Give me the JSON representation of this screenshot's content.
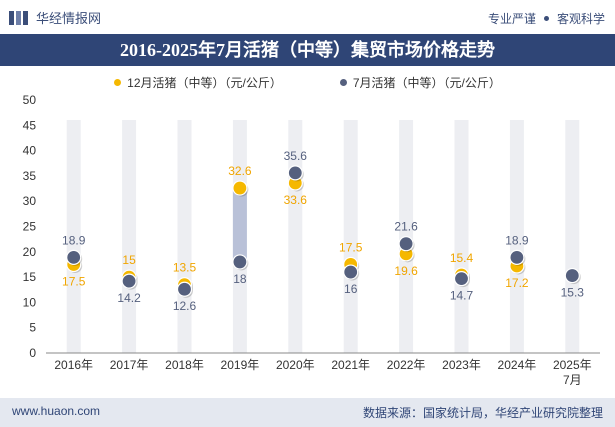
{
  "header": {
    "brand_name": "华经情报网",
    "slogan_left": "专业严谨",
    "slogan_right": "客观科学"
  },
  "title": "2016-2025年7月活猪（中等）集贸市场价格走势",
  "footer": {
    "website": "www.huaon.com",
    "source": "数据来源：国家统计局，华经产业研究院整理"
  },
  "colors": {
    "series_dec": "#f5b800",
    "series_jul": "#55607e",
    "bar_bg": "#edeef2",
    "range_bar": "#b9c1d8",
    "title_bg": "#2f4576"
  },
  "chart_data": {
    "type": "scatter",
    "categories": [
      "2016年",
      "2017年",
      "2018年",
      "2019年",
      "2020年",
      "2021年",
      "2022年",
      "2023年",
      "2024年",
      "2025年\n7月"
    ],
    "series": [
      {
        "name": "12月活猪（中等）（元/公斤）",
        "values": [
          17.5,
          15,
          13.5,
          32.6,
          33.6,
          17.5,
          19.6,
          15.4,
          17.2,
          null
        ]
      },
      {
        "name": "7月活猪（中等）（元/公斤）",
        "values": [
          18.9,
          14.2,
          12.6,
          18,
          35.6,
          16,
          21.6,
          14.7,
          18.9,
          15.3
        ]
      }
    ],
    "ylim": [
      0,
      50
    ],
    "yticks": [
      0,
      5,
      10,
      15,
      20,
      25,
      30,
      35,
      40,
      45,
      50
    ],
    "legend_position": "top",
    "grid": false
  }
}
